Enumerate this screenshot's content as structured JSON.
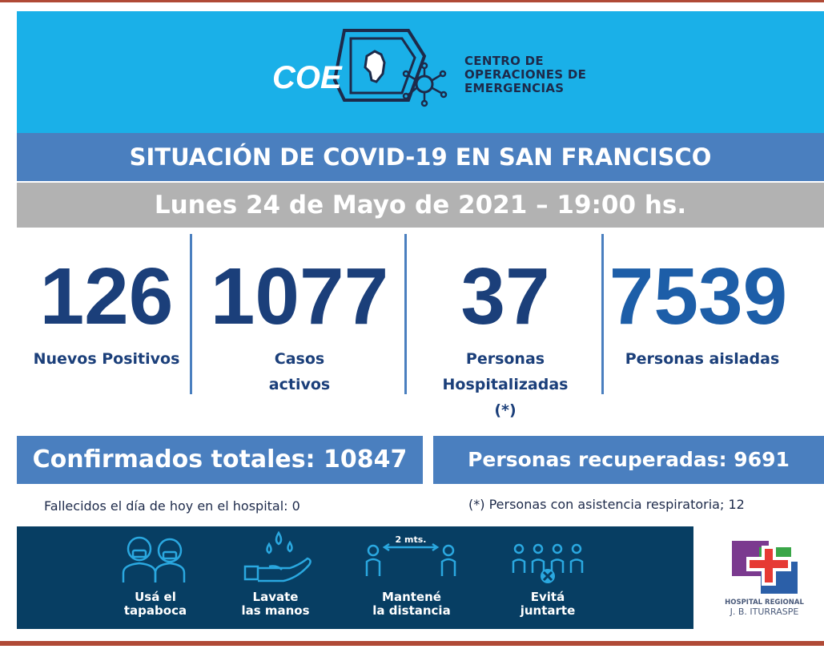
{
  "header": {
    "logo_lettering": "COE",
    "org_name_lines": [
      "CENTRO DE",
      "OPERACIONES DE",
      "EMERGENCIAS"
    ],
    "colors": {
      "background": "#1ab0e8",
      "logo_white": "#ffffff",
      "logo_dark": "#1d2a4a"
    }
  },
  "title": "SITUACIÓN DE COVID-19 EN SAN FRANCISCO",
  "date_line": "Lunes 24 de Mayo de 2021 – 19:00 hs.",
  "stats": [
    {
      "value": "126",
      "label_lines": [
        "Nuevos Positivos"
      ]
    },
    {
      "value": "1077",
      "label_lines": [
        "Casos",
        "activos"
      ]
    },
    {
      "value": "37",
      "label_lines": [
        "Personas",
        "Hospitalizadas",
        "(*)"
      ]
    },
    {
      "value": "7539",
      "label_lines": [
        "Personas aisladas"
      ]
    }
  ],
  "totals": {
    "confirmed": "Confirmados totales: 10847",
    "recovered": "Personas recuperadas: 9691"
  },
  "notes": {
    "deaths": "Fallecidos el día de hoy en el hospital: 0",
    "respiratory": "(*) Personas con asistencia respiratoria; 12"
  },
  "prevention": {
    "items": [
      {
        "icon": "face-mask-people-icon",
        "label_lines": [
          "Usá el",
          "tapaboca"
        ]
      },
      {
        "icon": "wash-hands-icon",
        "label_lines": [
          "Lavate",
          "las manos"
        ]
      },
      {
        "icon": "distance-icon",
        "label_lines": [
          "Mantené",
          "la distancia"
        ],
        "distance_text": "2 mts."
      },
      {
        "icon": "no-gathering-icon",
        "label_lines": [
          "Evitá",
          "juntarte"
        ]
      }
    ]
  },
  "hospital_logo": {
    "lettering_lines": [
      "HOSPITAL REGIONAL",
      "J. B. ITURRASPE"
    ]
  },
  "colors": {
    "accent_blue": "#4a7fbf",
    "date_gray": "#b2b2b2",
    "stat_navy": "#1b3f7a",
    "banner_navy": "#073e63",
    "rule_red": "#b04a36"
  }
}
